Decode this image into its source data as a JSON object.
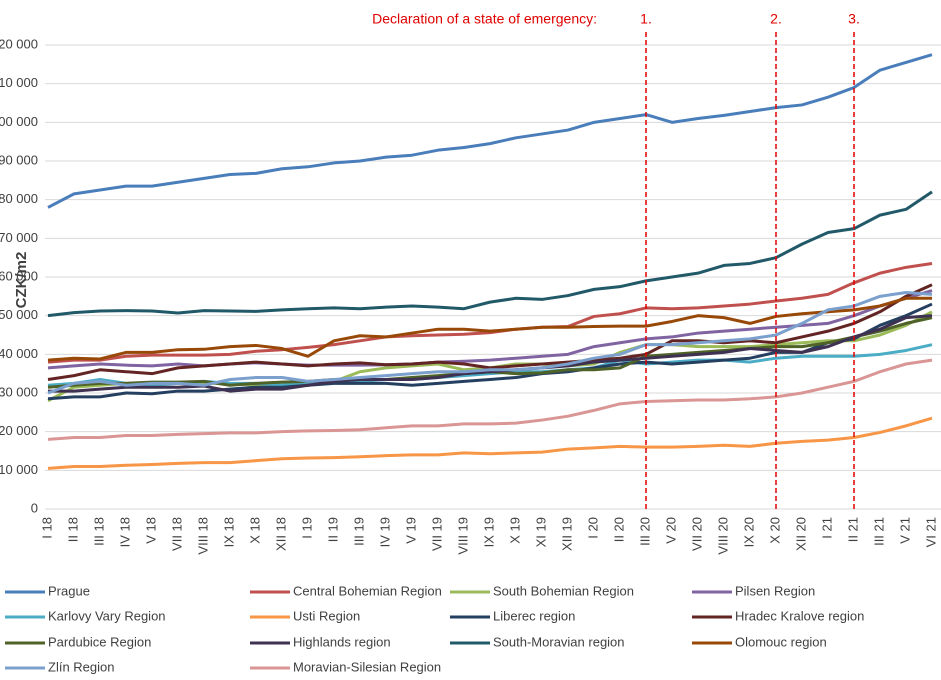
{
  "chart_data": {
    "type": "line",
    "annotation": "Declaration of a state of emergency:",
    "emergency_markers": [
      {
        "label": "1.",
        "x": "III 20"
      },
      {
        "label": "2.",
        "x": "X 20"
      },
      {
        "label": "3.",
        "x": "II 21"
      }
    ],
    "y_label": "CZK/m2",
    "categories": [
      "I 18",
      "II 18",
      "III 18",
      "IV 18",
      "V 18",
      "VII 18",
      "VIII 18",
      "IX 18",
      "X 18",
      "XII 18",
      "I 19",
      "II 19",
      "III 19",
      "IV 19",
      "V 19",
      "VII 19",
      "VIII 19",
      "IX 19",
      "X 19",
      "XI 19",
      "XII 19",
      "I 20",
      "II 20",
      "III 20",
      "V 20",
      "VII 20",
      "VIII 20",
      "IX 20",
      "X 20",
      "XII 20",
      "I 21",
      "II 21",
      "III 21",
      "V 21",
      "VI 21"
    ],
    "ylim": [
      0,
      120000
    ],
    "yticks": [
      0,
      {
        "value": 10000,
        "label": "10 000"
      },
      {
        "value": 20000,
        "label": "20 000"
      },
      {
        "value": 30000,
        "label": "30 000"
      },
      {
        "value": 40000,
        "label": "40 000"
      },
      {
        "value": 50000,
        "label": "50 000"
      },
      {
        "value": 60000,
        "label": "60 000"
      },
      {
        "value": 70000,
        "label": "70 000"
      },
      {
        "value": 80000,
        "label": "80 000"
      },
      {
        "value": 90000,
        "label": "90 000"
      },
      {
        "value": 100000,
        "label": "100 000"
      },
      {
        "value": 110000,
        "label": "110 000"
      },
      {
        "value": 120000,
        "label": "120 000"
      }
    ],
    "grid": true,
    "series": [
      {
        "name": "Prague",
        "color": "#4a7ebb",
        "values": [
          78000,
          81500,
          82500,
          83500,
          83500,
          84500,
          85500,
          86500,
          86800,
          88000,
          88500,
          89500,
          90000,
          91000,
          91500,
          92800,
          93500,
          94500,
          96000,
          97000,
          98000,
          100000,
          101000,
          102000,
          100000,
          101000,
          101800,
          102800,
          103800,
          104500,
          106500,
          109000,
          113500,
          115500,
          117500
        ]
      },
      {
        "name": "Central Bohemian Region",
        "color": "#c0504d",
        "values": [
          38000,
          38500,
          38500,
          39500,
          39800,
          39800,
          39800,
          40000,
          40800,
          41200,
          41800,
          42500,
          43500,
          44500,
          44800,
          45000,
          45200,
          45600,
          46500,
          47000,
          47200,
          49800,
          50500,
          52000,
          51800,
          52000,
          52500,
          53000,
          53800,
          54500,
          55500,
          58500,
          61000,
          62500,
          63500
        ]
      },
      {
        "name": "South Bohemian Region",
        "color": "#9bbb59",
        "values": [
          28000,
          31500,
          32000,
          32500,
          32500,
          32500,
          32500,
          32500,
          32000,
          32000,
          32000,
          33000,
          35500,
          36500,
          37000,
          37500,
          36000,
          36500,
          37500,
          37500,
          37000,
          37500,
          40500,
          42500,
          42500,
          42000,
          42000,
          42000,
          42500,
          43000,
          43500,
          43500,
          45000,
          47500,
          51000
        ]
      },
      {
        "name": "Pilsen Region",
        "color": "#8064a2",
        "values": [
          36500,
          37000,
          37500,
          37200,
          37000,
          37500,
          37000,
          37500,
          37800,
          37500,
          37200,
          37200,
          37200,
          37300,
          37500,
          38000,
          38200,
          38500,
          39000,
          39500,
          40000,
          42000,
          43000,
          44000,
          44500,
          45500,
          46000,
          46500,
          47000,
          47500,
          48000,
          50000,
          52500,
          54500,
          56500
        ]
      },
      {
        "name": "Karlovy Vary Region",
        "color": "#4bacc6",
        "values": [
          32000,
          32500,
          33500,
          32500,
          32000,
          32500,
          33000,
          32500,
          32500,
          32000,
          32800,
          33000,
          33000,
          33500,
          33500,
          34000,
          34500,
          35000,
          35500,
          35500,
          36000,
          36500,
          38500,
          37500,
          38000,
          38500,
          38500,
          38000,
          39000,
          39500,
          39500,
          39500,
          40000,
          41000,
          42500
        ]
      },
      {
        "name": "Usti Region",
        "color": "#f79646",
        "values": [
          10500,
          11000,
          11000,
          11300,
          11500,
          11800,
          12000,
          12000,
          12500,
          13000,
          13200,
          13300,
          13500,
          13800,
          14000,
          14000,
          14500,
          14300,
          14500,
          14700,
          15500,
          15800,
          16200,
          16000,
          16000,
          16200,
          16500,
          16200,
          17000,
          17500,
          17800,
          18500,
          19800,
          21500,
          23500
        ]
      },
      {
        "name": "Liberec region",
        "color": "#243f60",
        "values": [
          28500,
          29000,
          29000,
          30000,
          29800,
          30500,
          30500,
          31000,
          31500,
          31500,
          32000,
          32500,
          32500,
          32500,
          32000,
          32500,
          33000,
          33500,
          34000,
          35000,
          35500,
          36500,
          37500,
          38000,
          37500,
          38000,
          38500,
          39000,
          40500,
          40500,
          43000,
          44000,
          47500,
          50000,
          53000
        ]
      },
      {
        "name": "Hradec Kralove region",
        "color": "#632523",
        "values": [
          33500,
          34500,
          36000,
          35500,
          35000,
          36500,
          37000,
          37500,
          38000,
          37500,
          37000,
          37500,
          37800,
          37300,
          37500,
          38000,
          37500,
          36500,
          37000,
          37500,
          38000,
          38500,
          39000,
          40000,
          43500,
          43500,
          43000,
          43500,
          43000,
          44500,
          46000,
          48000,
          51000,
          55000,
          58000
        ]
      },
      {
        "name": "Pardubice Region",
        "color": "#4f6228",
        "values": [
          31500,
          32000,
          32500,
          32500,
          32800,
          32800,
          33000,
          32000,
          32500,
          32800,
          33000,
          33500,
          33500,
          33500,
          34000,
          34500,
          35000,
          35500,
          35000,
          35200,
          36000,
          36000,
          36500,
          39500,
          40000,
          40500,
          41000,
          41500,
          42000,
          42000,
          43000,
          44500,
          46000,
          48000,
          49500
        ]
      },
      {
        "name": "Highlands region",
        "color": "#3f3151",
        "values": [
          30500,
          30500,
          31000,
          31500,
          31500,
          31500,
          31800,
          30500,
          31000,
          31000,
          32000,
          33000,
          33500,
          33500,
          33500,
          34000,
          35000,
          35500,
          36000,
          36500,
          37000,
          38000,
          38500,
          39000,
          39500,
          40000,
          40500,
          41500,
          41000,
          40500,
          42000,
          44500,
          46500,
          49500,
          50000
        ]
      },
      {
        "name": "South-Moravian region",
        "color": "#215968",
        "values": [
          50000,
          50800,
          51200,
          51300,
          51200,
          50700,
          51300,
          51200,
          51100,
          51500,
          51800,
          52000,
          51800,
          52200,
          52500,
          52200,
          51800,
          53500,
          54500,
          54200,
          55200,
          56800,
          57500,
          59000,
          60000,
          61000,
          63000,
          63500,
          65000,
          68500,
          71500,
          72500,
          76000,
          77500,
          82000
        ]
      },
      {
        "name": "Olomouc region",
        "color": "#984807",
        "values": [
          38500,
          39000,
          38800,
          40500,
          40500,
          41200,
          41300,
          42000,
          42300,
          41500,
          39500,
          43500,
          44800,
          44500,
          45500,
          46500,
          46500,
          46000,
          46500,
          47000,
          47000,
          47200,
          47300,
          47300,
          48500,
          50000,
          49500,
          48000,
          49800,
          50500,
          51000,
          51500,
          52500,
          54500,
          54500
        ]
      },
      {
        "name": "Zlín Region",
        "color": "#7ba0cd",
        "values": [
          30000,
          32500,
          33000,
          32000,
          32500,
          32500,
          32000,
          33500,
          34000,
          34000,
          33000,
          33500,
          34000,
          34500,
          35000,
          35500,
          35500,
          36000,
          36000,
          36500,
          37500,
          39000,
          40000,
          42500,
          42500,
          43000,
          43500,
          44000,
          45000,
          48000,
          51500,
          52500,
          55000,
          56000,
          55500
        ]
      },
      {
        "name": "Moravian-Silesian Region",
        "color": "#d99694",
        "values": [
          18000,
          18500,
          18500,
          19000,
          19000,
          19300,
          19500,
          19700,
          19700,
          20000,
          20200,
          20300,
          20500,
          21000,
          21500,
          21500,
          22000,
          22000,
          22200,
          23000,
          24000,
          25500,
          27200,
          27800,
          28000,
          28200,
          28200,
          28500,
          29000,
          30000,
          31500,
          33000,
          35500,
          37500,
          38500
        ]
      }
    ]
  }
}
